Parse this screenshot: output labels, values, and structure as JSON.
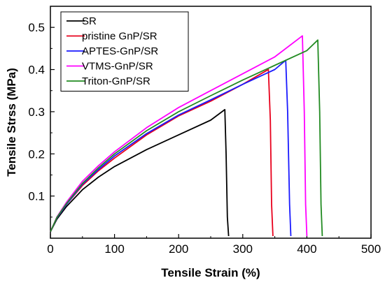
{
  "chart_data": {
    "type": "line",
    "xlabel": "Tensile Strain (%)",
    "ylabel": "Tensile Strss (MPa)",
    "xlim": [
      0,
      500
    ],
    "ylim": [
      0,
      0.55
    ],
    "xticks": [
      0,
      100,
      200,
      300,
      400,
      500
    ],
    "yticks": [
      0.1,
      0.2,
      0.3,
      0.4,
      0.5
    ],
    "grid": false,
    "legend_position": "top-left",
    "series": [
      {
        "name": "SR",
        "color": "#000000",
        "x": [
          0,
          10,
          25,
          50,
          75,
          100,
          150,
          200,
          250,
          272,
          274,
          276,
          278
        ],
        "y": [
          0.015,
          0.045,
          0.075,
          0.115,
          0.145,
          0.17,
          0.21,
          0.245,
          0.28,
          0.305,
          0.2,
          0.05,
          0.005
        ]
      },
      {
        "name": "pristine GnP/SR",
        "color": "#e8001c",
        "x": [
          0,
          10,
          25,
          50,
          75,
          100,
          150,
          200,
          250,
          300,
          340,
          343,
          345,
          347
        ],
        "y": [
          0.015,
          0.048,
          0.08,
          0.125,
          0.16,
          0.19,
          0.245,
          0.29,
          0.325,
          0.365,
          0.4,
          0.28,
          0.08,
          0.005
        ]
      },
      {
        "name": "APTES-GnP/SR",
        "color": "#1a1aff",
        "x": [
          0,
          10,
          25,
          50,
          75,
          100,
          150,
          200,
          250,
          300,
          350,
          367,
          370,
          373,
          375
        ],
        "y": [
          0.015,
          0.048,
          0.08,
          0.128,
          0.163,
          0.195,
          0.248,
          0.292,
          0.328,
          0.365,
          0.4,
          0.422,
          0.3,
          0.08,
          0.005
        ]
      },
      {
        "name": "VTMS-GnP/SR",
        "color": "#ff00ff",
        "x": [
          0,
          10,
          25,
          50,
          75,
          100,
          150,
          200,
          250,
          300,
          350,
          393,
          396,
          398,
          400
        ],
        "y": [
          0.015,
          0.05,
          0.085,
          0.135,
          0.172,
          0.205,
          0.262,
          0.31,
          0.35,
          0.39,
          0.43,
          0.48,
          0.3,
          0.08,
          0.005
        ]
      },
      {
        "name": "Triton-GnP/SR",
        "color": "#228b22",
        "x": [
          0,
          10,
          25,
          50,
          75,
          100,
          150,
          200,
          250,
          300,
          350,
          400,
          417,
          420,
          422,
          424
        ],
        "y": [
          0.015,
          0.049,
          0.082,
          0.13,
          0.167,
          0.2,
          0.255,
          0.3,
          0.338,
          0.375,
          0.41,
          0.445,
          0.47,
          0.3,
          0.08,
          0.005
        ]
      }
    ]
  }
}
